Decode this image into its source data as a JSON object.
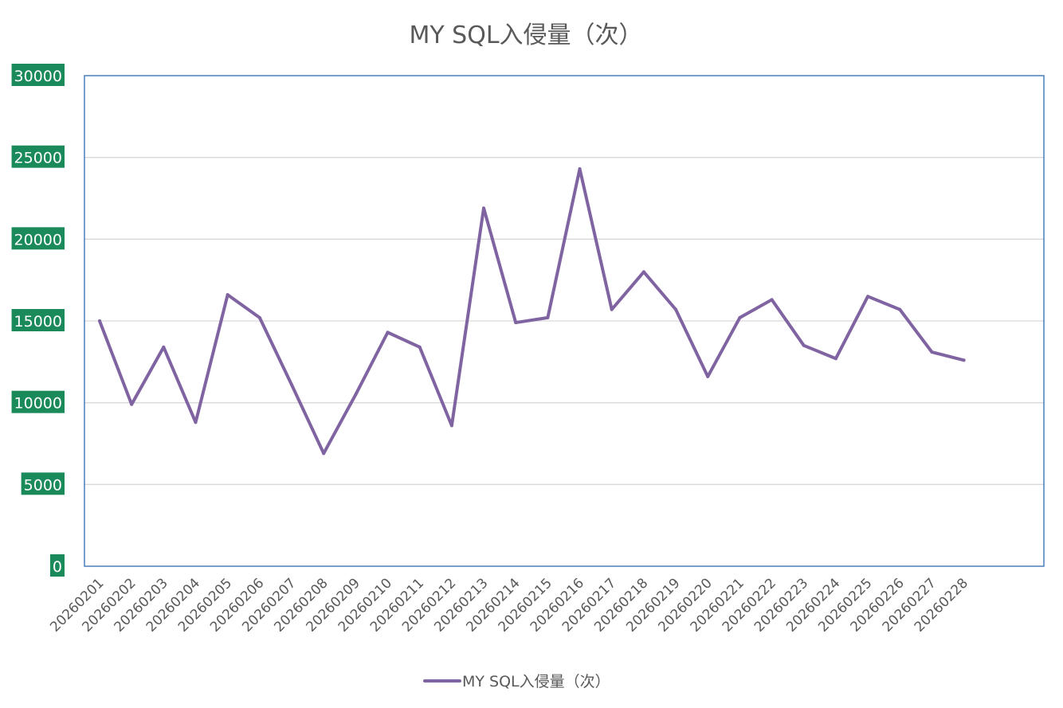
{
  "chart_data": {
    "type": "line",
    "title": "MY SQL入侵量（次）",
    "xlabel": "",
    "ylabel": "",
    "ylim": [
      0,
      30000
    ],
    "yticks": [
      "0",
      "5000",
      "10000",
      "15000",
      "20000",
      "25000",
      "30000"
    ],
    "grid": true,
    "legend": "bottom",
    "categories": [
      "20260201",
      "20260202",
      "20260203",
      "20260204",
      "20260205",
      "20260206",
      "20260207",
      "20260208",
      "20260209",
      "20260210",
      "20260211",
      "20260212",
      "20260213",
      "20260214",
      "20260215",
      "20260216",
      "20260217",
      "20260218",
      "20260219",
      "20260220",
      "20260221",
      "20260222",
      "20260223",
      "20260224",
      "20260225",
      "20260226",
      "20260227",
      "20260228"
    ],
    "series": [
      {
        "name": "MY SQL入侵量（次）",
        "color": "#8064a2",
        "values": [
          15000,
          9900,
          13400,
          8800,
          16600,
          15200,
          11100,
          6900,
          10500,
          14300,
          13400,
          8600,
          21900,
          14900,
          15200,
          24300,
          15700,
          18000,
          15700,
          11600,
          15200,
          16300,
          13500,
          12700,
          16500,
          15700,
          13100,
          12600
        ]
      }
    ],
    "colors": {
      "tick_label_bg": "#1a8a5a",
      "gridline": "#d9d9d9",
      "plot_border": "#4a7ebb",
      "text": "#595959"
    }
  }
}
